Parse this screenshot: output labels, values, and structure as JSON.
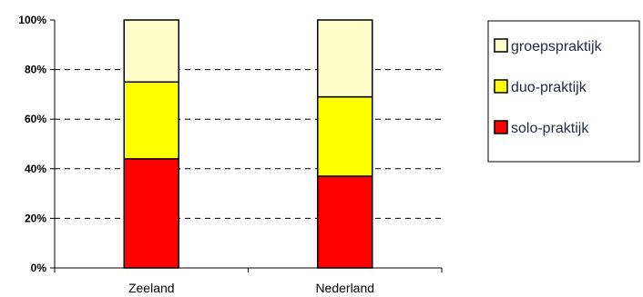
{
  "chart_data": {
    "type": "bar",
    "stacked": true,
    "percent_axis": true,
    "categories": [
      "Zeeland",
      "Nederland"
    ],
    "series": [
      {
        "name": "solo-praktijk",
        "values": [
          44,
          37
        ],
        "color": "#ff0000"
      },
      {
        "name": "duo-praktijk",
        "values": [
          31,
          32
        ],
        "color": "#ffff00"
      },
      {
        "name": "groepspraktijk",
        "values": [
          25,
          31
        ],
        "color": "#ffffcc"
      }
    ],
    "legend_order": [
      "groepspraktijk",
      "duo-praktijk",
      "solo-praktijk"
    ],
    "yticks": [
      "0%",
      "20%",
      "40%",
      "60%",
      "80%",
      "100%"
    ],
    "ylim": [
      0,
      100
    ],
    "grid": "dashed horizontal",
    "legend_position": "right",
    "title": "",
    "xlabel": "",
    "ylabel": ""
  }
}
